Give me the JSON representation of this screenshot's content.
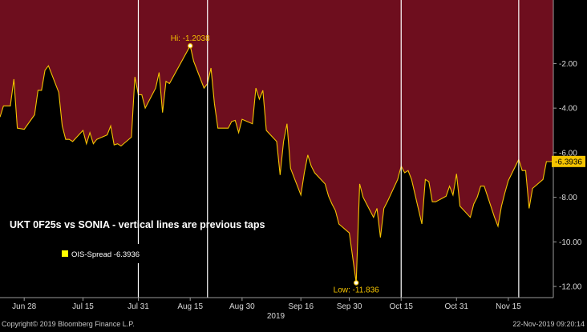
{
  "chart_data": {
    "type": "area",
    "title": "UKT 0F25s vs SONIA - vertical lines are previous taps",
    "legend": {
      "label": "OIS-Spread -6.3936",
      "color": "#ffff00",
      "placement": "middle-left"
    },
    "annotations": {
      "high": {
        "label": "Hi: -1.2038",
        "x": "2019-08-15",
        "y": -1.2038
      },
      "low": {
        "label": "Low: -11.836",
        "x": "2019-10-02",
        "y": -11.836
      },
      "last": {
        "label": "-6.3936",
        "y": -6.3936
      }
    },
    "year_label": "2019",
    "x_ticks": [
      "Jun 28",
      "Jul 15",
      "Jul 31",
      "Aug 15",
      "Aug 30",
      "Sep 16",
      "Sep 30",
      "Oct 15",
      "Oct 31",
      "Nov 15"
    ],
    "y_ticks": [
      "-2.00",
      "-4.00",
      "-6.00",
      "-8.00",
      "-10.00",
      "-12.00"
    ],
    "ylim": [
      -12.5,
      0.85
    ],
    "grid": false,
    "vertical_lines": [
      "2019-07-31",
      "2019-08-20",
      "2019-10-15",
      "2019-11-18"
    ],
    "colors": {
      "above_fill": "#6e0e1e",
      "below_fill": "#000000",
      "line": "#f5c400",
      "axis_text": "#d8d8d8"
    },
    "series": [
      {
        "values": [
          [
            "2019-06-21",
            -4.4
          ],
          [
            "2019-06-22",
            -3.9
          ],
          [
            "2019-06-24",
            -3.9
          ],
          [
            "2019-06-25",
            -2.7
          ],
          [
            "2019-06-26",
            -4.9
          ],
          [
            "2019-06-28",
            -4.95
          ],
          [
            "2019-07-01",
            -4.3
          ],
          [
            "2019-07-02",
            -3.2
          ],
          [
            "2019-07-03",
            -3.2
          ],
          [
            "2019-07-04",
            -2.3
          ],
          [
            "2019-07-05",
            -2.1
          ],
          [
            "2019-07-08",
            -3.3
          ],
          [
            "2019-07-09",
            -4.8
          ],
          [
            "2019-07-10",
            -5.4
          ],
          [
            "2019-07-11",
            -5.4
          ],
          [
            "2019-07-12",
            -5.5
          ],
          [
            "2019-07-15",
            -5.0
          ],
          [
            "2019-07-16",
            -5.6
          ],
          [
            "2019-07-17",
            -5.1
          ],
          [
            "2019-07-18",
            -5.6
          ],
          [
            "2019-07-19",
            -5.4
          ],
          [
            "2019-07-22",
            -5.2
          ],
          [
            "2019-07-23",
            -4.8
          ],
          [
            "2019-07-24",
            -5.65
          ],
          [
            "2019-07-25",
            -5.6
          ],
          [
            "2019-07-26",
            -5.7
          ],
          [
            "2019-07-29",
            -5.3
          ],
          [
            "2019-07-30",
            -2.6
          ],
          [
            "2019-07-31",
            -3.4
          ],
          [
            "2019-08-01",
            -3.4
          ],
          [
            "2019-08-02",
            -4.0
          ],
          [
            "2019-08-05",
            -3.1
          ],
          [
            "2019-08-06",
            -2.4
          ],
          [
            "2019-08-07",
            -4.2
          ],
          [
            "2019-08-08",
            -2.8
          ],
          [
            "2019-08-09",
            -2.9
          ],
          [
            "2019-08-15",
            -1.2038
          ],
          [
            "2019-08-16",
            -1.9
          ],
          [
            "2019-08-19",
            -3.1
          ],
          [
            "2019-08-20",
            -2.9
          ],
          [
            "2019-08-21",
            -2.2
          ],
          [
            "2019-08-22",
            -3.8
          ],
          [
            "2019-08-23",
            -4.9
          ],
          [
            "2019-08-26",
            -4.9
          ],
          [
            "2019-08-27",
            -4.6
          ],
          [
            "2019-08-28",
            -4.55
          ],
          [
            "2019-08-29",
            -5.1
          ],
          [
            "2019-08-30",
            -4.5
          ],
          [
            "2019-09-02",
            -4.7
          ],
          [
            "2019-09-03",
            -3.1
          ],
          [
            "2019-09-04",
            -3.6
          ],
          [
            "2019-09-05",
            -3.2
          ],
          [
            "2019-09-06",
            -5.0
          ],
          [
            "2019-09-09",
            -5.5
          ],
          [
            "2019-09-10",
            -7.0
          ],
          [
            "2019-09-11",
            -5.5
          ],
          [
            "2019-09-12",
            -4.7
          ],
          [
            "2019-09-13",
            -6.7
          ],
          [
            "2019-09-16",
            -7.9
          ],
          [
            "2019-09-17",
            -6.9
          ],
          [
            "2019-09-18",
            -6.1
          ],
          [
            "2019-09-19",
            -6.6
          ],
          [
            "2019-09-20",
            -6.9
          ],
          [
            "2019-09-23",
            -7.4
          ],
          [
            "2019-09-24",
            -7.95
          ],
          [
            "2019-09-25",
            -8.3
          ],
          [
            "2019-09-26",
            -8.6
          ],
          [
            "2019-09-27",
            -9.2
          ],
          [
            "2019-09-30",
            -9.6
          ],
          [
            "2019-10-02",
            -11.836
          ],
          [
            "2019-10-03",
            -7.4
          ],
          [
            "2019-10-04",
            -8.0
          ],
          [
            "2019-10-07",
            -8.9
          ],
          [
            "2019-10-08",
            -8.5
          ],
          [
            "2019-10-09",
            -9.8
          ],
          [
            "2019-10-10",
            -8.5
          ],
          [
            "2019-10-11",
            -8.2
          ],
          [
            "2019-10-14",
            -7.2
          ],
          [
            "2019-10-15",
            -6.6
          ],
          [
            "2019-10-16",
            -6.9
          ],
          [
            "2019-10-17",
            -6.8
          ],
          [
            "2019-10-18",
            -7.2
          ],
          [
            "2019-10-21",
            -9.2
          ],
          [
            "2019-10-22",
            -7.2
          ],
          [
            "2019-10-23",
            -7.3
          ],
          [
            "2019-10-24",
            -8.2
          ],
          [
            "2019-10-25",
            -8.2
          ],
          [
            "2019-10-28",
            -7.95
          ],
          [
            "2019-10-29",
            -7.5
          ],
          [
            "2019-10-30",
            -7.9
          ],
          [
            "2019-10-31",
            -6.95
          ],
          [
            "2019-11-01",
            -8.4
          ],
          [
            "2019-11-04",
            -8.9
          ],
          [
            "2019-11-05",
            -8.3
          ],
          [
            "2019-11-06",
            -8.0
          ],
          [
            "2019-11-07",
            -7.5
          ],
          [
            "2019-11-08",
            -7.5
          ],
          [
            "2019-11-11",
            -8.9
          ],
          [
            "2019-11-12",
            -9.3
          ],
          [
            "2019-11-13",
            -8.4
          ],
          [
            "2019-11-14",
            -7.8
          ],
          [
            "2019-11-15",
            -7.25
          ],
          [
            "2019-11-18",
            -6.3
          ],
          [
            "2019-11-19",
            -6.8
          ],
          [
            "2019-11-20",
            -6.8
          ],
          [
            "2019-11-21",
            -8.5
          ],
          [
            "2019-11-22",
            -7.6
          ],
          [
            "2019-11-25",
            -7.2
          ],
          [
            "2019-11-26",
            -6.4
          ],
          [
            "2019-11-27",
            -6.4
          ],
          [
            "2019-11-28",
            -6.3936
          ]
        ]
      }
    ]
  },
  "footer": {
    "copyright": "Copyright© 2019 Bloomberg Finance L.P.",
    "timestamp": "22-Nov-2019 09:20:14"
  }
}
